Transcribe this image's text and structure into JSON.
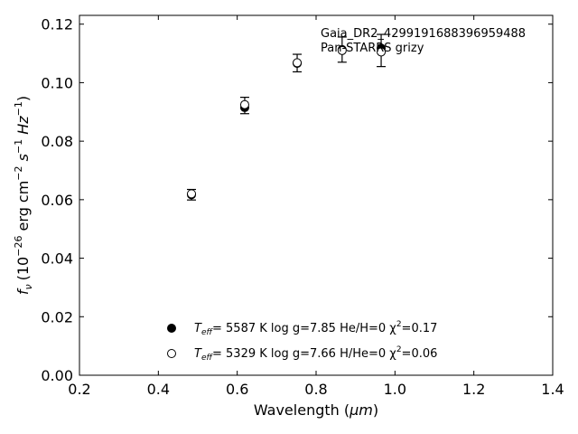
{
  "chart_data": {
    "type": "scatter",
    "xlabel_main": "Wavelength (",
    "xlabel_unit": "μm",
    "xlabel_close": ")",
    "ylabel_prefix": "f",
    "ylabel_sub": "ν",
    "ylabel_body": "(10",
    "ylabel_exp": "−26",
    "ylabel_units": " erg cm",
    "ylabel_exp2": "−2",
    "ylabel_s": " s",
    "ylabel_exp3": "−1",
    "ylabel_hz": " Hz",
    "ylabel_exp4": "−1",
    "ylabel_close": ")",
    "xlim": [
      0.2,
      1.4
    ],
    "ylim": [
      0.0,
      0.123
    ],
    "xticks": [
      0.2,
      0.4,
      0.6,
      0.8,
      1.0,
      1.2,
      1.4
    ],
    "xtick_labels": [
      "0.2",
      "0.4",
      "0.6",
      "0.8",
      "1.0",
      "1.2",
      "1.4"
    ],
    "yticks": [
      0.0,
      0.02,
      0.04,
      0.06,
      0.08,
      0.1,
      0.12
    ],
    "ytick_labels": [
      "0.00",
      "0.02",
      "0.04",
      "0.06",
      "0.08",
      "0.10",
      "0.12"
    ],
    "annotation_line1": "Gaia_DR2_4299191688396959488",
    "annotation_line2": "Pan-STARRS grizy",
    "observed": [
      {
        "x": 0.484,
        "y": 0.0617,
        "err": 0.0018
      },
      {
        "x": 0.619,
        "y": 0.0922,
        "err": 0.0028
      },
      {
        "x": 0.752,
        "y": 0.1067,
        "err": 0.003
      },
      {
        "x": 0.866,
        "y": 0.1113,
        "err": 0.0043
      },
      {
        "x": 0.965,
        "y": 0.111,
        "err": 0.0055
      }
    ],
    "series": [
      {
        "marker": "filled",
        "legend_teff_label": "T",
        "legend_teff_sub": "eff",
        "legend_rest": "=  5587 K  log g=7.85  He/H=0  χ",
        "legend_chi_exp": "2",
        "legend_chi_val": "=0.17",
        "x": [
          0.484,
          0.619,
          0.752,
          0.866,
          0.965
        ],
        "y": [
          0.0617,
          0.0915,
          0.1066,
          0.1113,
          0.1118
        ]
      },
      {
        "marker": "open",
        "legend_teff_label": "T",
        "legend_teff_sub": "eff",
        "legend_rest": "=  5329 K  log g=7.66  H/He=0  χ",
        "legend_chi_exp": "2",
        "legend_chi_val": "=0.06",
        "x": [
          0.484,
          0.619,
          0.752,
          0.866,
          0.965
        ],
        "y": [
          0.062,
          0.0925,
          0.1068,
          0.111,
          0.1105
        ]
      }
    ],
    "legend_position": "lower-center",
    "grid": false
  }
}
